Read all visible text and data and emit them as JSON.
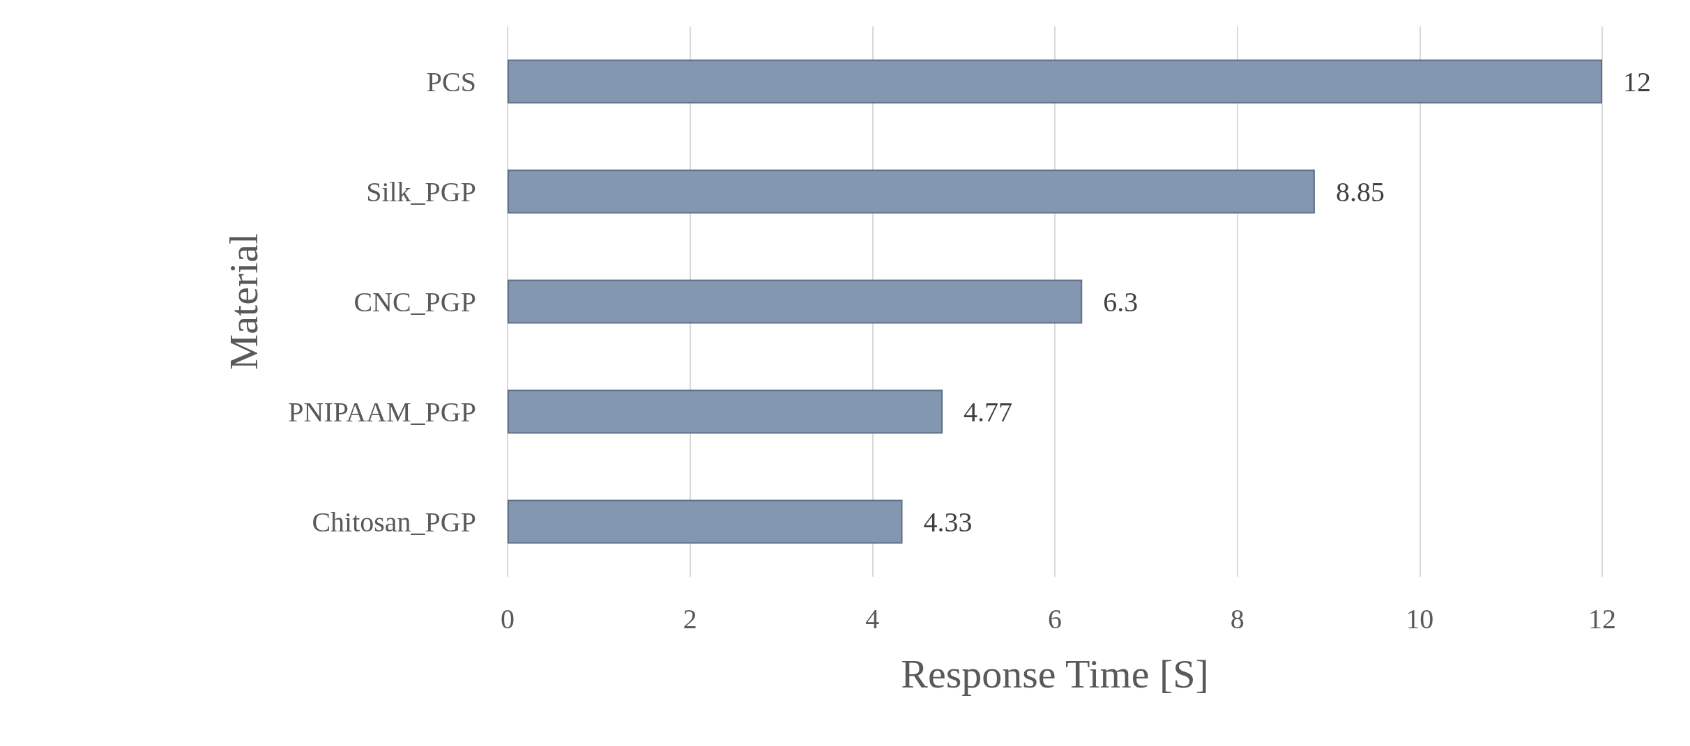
{
  "chart_data": {
    "type": "bar",
    "orientation": "horizontal",
    "xlabel": "Response Time [S]",
    "ylabel": "Material",
    "categories": [
      "PCS",
      "Silk_PGP",
      "CNC_PGP",
      "PNIPAAM_PGP",
      "Chitosan_PGP"
    ],
    "values": [
      12,
      8.85,
      6.3,
      4.77,
      4.33
    ],
    "color": "#8497b0",
    "xlim": [
      0,
      12
    ],
    "xticks": [
      0,
      2,
      4,
      6,
      8,
      10,
      12
    ],
    "grid": "x",
    "data_labels": true
  }
}
